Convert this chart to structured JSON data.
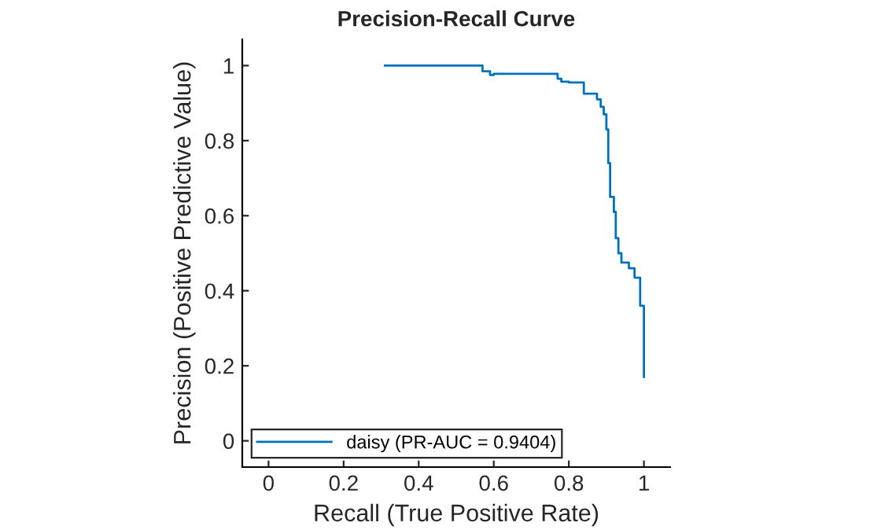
{
  "chart_data": {
    "type": "step",
    "title": "Precision-Recall Curve",
    "xlabel": "Recall (True Positive Rate)",
    "ylabel": "Precision (Positive Predictive Value)",
    "series": [
      {
        "name": "daisy (PR-AUC = 0.9404)",
        "color": "#0072bd",
        "x": [
          0.31,
          0.57,
          0.59,
          0.6,
          0.77,
          0.78,
          0.8,
          0.84,
          0.875,
          0.885,
          0.893,
          0.9,
          0.905,
          0.91,
          0.92,
          0.925,
          0.932,
          0.94,
          0.96,
          0.975,
          0.99,
          1.0
        ],
        "values": [
          1.0,
          0.985,
          0.975,
          0.978,
          0.965,
          0.957,
          0.955,
          0.925,
          0.91,
          0.89,
          0.87,
          0.83,
          0.74,
          0.65,
          0.61,
          0.54,
          0.5,
          0.475,
          0.46,
          0.435,
          0.36,
          0.17
        ]
      }
    ],
    "xlim": [
      -0.07,
      1.07
    ],
    "ylim": [
      -0.07,
      1.07
    ],
    "xticks": [
      0,
      0.2,
      0.4,
      0.6,
      0.8,
      1
    ],
    "yticks": [
      0,
      0.2,
      0.4,
      0.6,
      0.8,
      1
    ],
    "grid": false,
    "legend": "bottom left"
  }
}
